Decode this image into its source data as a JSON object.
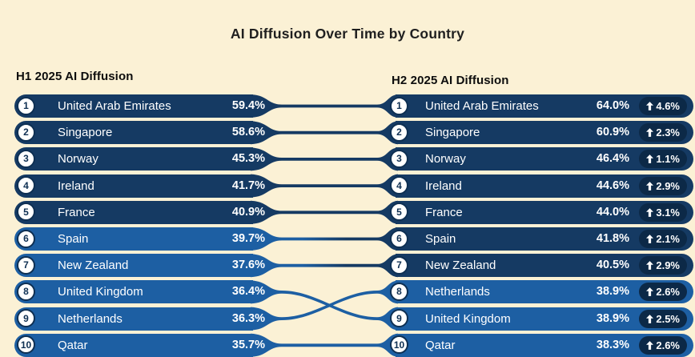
{
  "title": "AI Diffusion Over Time by Country",
  "columns": {
    "left": {
      "header": "H1 2025 AI Diffusion"
    },
    "right": {
      "header": "H2 2025 AI Diffusion"
    }
  },
  "colors": {
    "background": "#fbf1d5",
    "dark_pill": "#153a63",
    "light_pill": "#1d5fa3",
    "badge_bg": "#0c2947",
    "pill_text": "#ffffff",
    "title_text": "#1f1f1f",
    "header_text": "#0d0d0d",
    "circle_fill": "#ffffff",
    "circle_ring": "#0e2f52",
    "rank_text": "#0e2f52"
  },
  "left_rows": [
    {
      "rank": 1,
      "country": "United Arab Emirates",
      "value": "59.4%",
      "tier": "dark"
    },
    {
      "rank": 2,
      "country": "Singapore",
      "value": "58.6%",
      "tier": "dark"
    },
    {
      "rank": 3,
      "country": "Norway",
      "value": "45.3%",
      "tier": "dark"
    },
    {
      "rank": 4,
      "country": "Ireland",
      "value": "41.7%",
      "tier": "dark"
    },
    {
      "rank": 5,
      "country": "France",
      "value": "40.9%",
      "tier": "dark"
    },
    {
      "rank": 6,
      "country": "Spain",
      "value": "39.7%",
      "tier": "light"
    },
    {
      "rank": 7,
      "country": "New Zealand",
      "value": "37.6%",
      "tier": "light"
    },
    {
      "rank": 8,
      "country": "United Kingdom",
      "value": "36.4%",
      "tier": "light"
    },
    {
      "rank": 9,
      "country": "Netherlands",
      "value": "36.3%",
      "tier": "light"
    },
    {
      "rank": 10,
      "country": "Qatar",
      "value": "35.7%",
      "tier": "light"
    }
  ],
  "right_rows": [
    {
      "rank": 1,
      "country": "United Arab Emirates",
      "value": "64.0%",
      "change": "4.6%",
      "tier": "dark"
    },
    {
      "rank": 2,
      "country": "Singapore",
      "value": "60.9%",
      "change": "2.3%",
      "tier": "dark"
    },
    {
      "rank": 3,
      "country": "Norway",
      "value": "46.4%",
      "change": "1.1%",
      "tier": "dark"
    },
    {
      "rank": 4,
      "country": "Ireland",
      "value": "44.6%",
      "change": "2.9%",
      "tier": "dark"
    },
    {
      "rank": 5,
      "country": "France",
      "value": "44.0%",
      "change": "3.1%",
      "tier": "dark"
    },
    {
      "rank": 6,
      "country": "Spain",
      "value": "41.8%",
      "change": "2.1%",
      "tier": "dark"
    },
    {
      "rank": 7,
      "country": "New Zealand",
      "value": "40.5%",
      "change": "2.9%",
      "tier": "dark"
    },
    {
      "rank": 8,
      "country": "Netherlands",
      "value": "38.9%",
      "change": "2.6%",
      "tier": "light"
    },
    {
      "rank": 9,
      "country": "United Kingdom",
      "value": "38.9%",
      "change": "2.5%",
      "tier": "light"
    },
    {
      "rank": 10,
      "country": "Qatar",
      "value": "38.3%",
      "change": "2.6%",
      "tier": "light"
    }
  ],
  "links": [
    [
      0,
      0
    ],
    [
      1,
      1
    ],
    [
      2,
      2
    ],
    [
      3,
      3
    ],
    [
      4,
      4
    ],
    [
      5,
      5
    ],
    [
      6,
      6
    ],
    [
      7,
      8
    ],
    [
      8,
      7
    ],
    [
      9,
      9
    ]
  ],
  "chart_data": {
    "type": "table",
    "title": "AI Diffusion Over Time by Country",
    "series": [
      {
        "name": "H1 2025 AI Diffusion",
        "points": [
          {
            "rank": 1,
            "country": "United Arab Emirates",
            "value": 59.4
          },
          {
            "rank": 2,
            "country": "Singapore",
            "value": 58.6
          },
          {
            "rank": 3,
            "country": "Norway",
            "value": 45.3
          },
          {
            "rank": 4,
            "country": "Ireland",
            "value": 41.7
          },
          {
            "rank": 5,
            "country": "France",
            "value": 40.9
          },
          {
            "rank": 6,
            "country": "Spain",
            "value": 39.7
          },
          {
            "rank": 7,
            "country": "New Zealand",
            "value": 37.6
          },
          {
            "rank": 8,
            "country": "United Kingdom",
            "value": 36.4
          },
          {
            "rank": 9,
            "country": "Netherlands",
            "value": 36.3
          },
          {
            "rank": 10,
            "country": "Qatar",
            "value": 35.7
          }
        ]
      },
      {
        "name": "H2 2025 AI Diffusion",
        "points": [
          {
            "rank": 1,
            "country": "United Arab Emirates",
            "value": 64.0,
            "change": 4.6
          },
          {
            "rank": 2,
            "country": "Singapore",
            "value": 60.9,
            "change": 2.3
          },
          {
            "rank": 3,
            "country": "Norway",
            "value": 46.4,
            "change": 1.1
          },
          {
            "rank": 4,
            "country": "Ireland",
            "value": 44.6,
            "change": 2.9
          },
          {
            "rank": 5,
            "country": "France",
            "value": 44.0,
            "change": 3.1
          },
          {
            "rank": 6,
            "country": "Spain",
            "value": 41.8,
            "change": 2.1
          },
          {
            "rank": 7,
            "country": "New Zealand",
            "value": 40.5,
            "change": 2.9
          },
          {
            "rank": 8,
            "country": "Netherlands",
            "value": 38.9,
            "change": 2.6
          },
          {
            "rank": 9,
            "country": "United Kingdom",
            "value": 38.9,
            "change": 2.5
          },
          {
            "rank": 10,
            "country": "Qatar",
            "value": 38.3,
            "change": 2.6
          }
        ]
      }
    ]
  }
}
